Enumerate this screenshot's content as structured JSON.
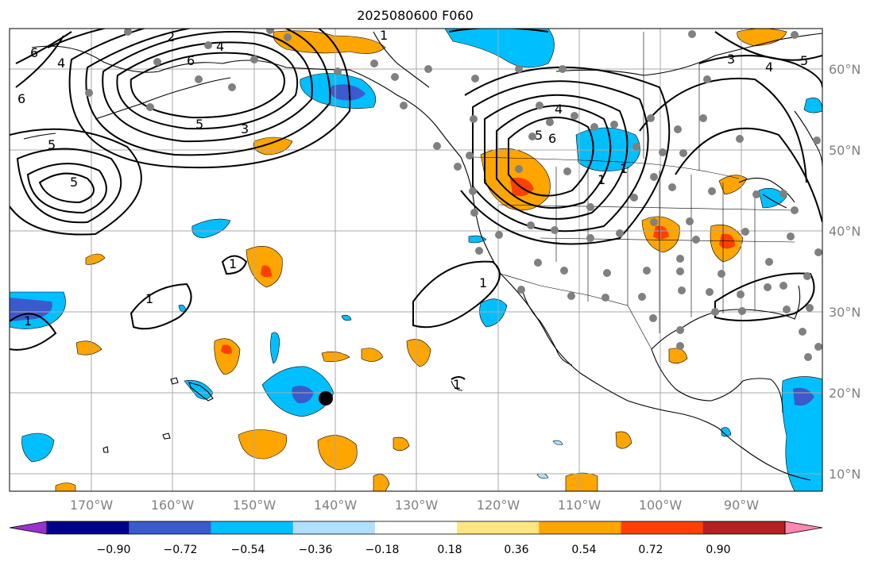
{
  "title": "2025080600 F060",
  "lon_labels": [
    "170°W",
    "160°W",
    "150°W",
    "140°W",
    "130°W",
    "120°W",
    "110°W",
    "100°W",
    "90°W"
  ],
  "lat_labels": [
    "60°N",
    "50°N",
    "40°N",
    "30°N",
    "20°N",
    "10°N"
  ],
  "colorbar": {
    "colors": [
      "#9932cc",
      "#00008b",
      "#3b5bcc",
      "#00bfff",
      "#b0e0ff",
      "#ffffff",
      "#ffe680",
      "#ffa500",
      "#ff4000",
      "#b22222",
      "#ff88b0"
    ],
    "tick_labels": [
      "−0.90",
      "−0.72",
      "−0.54",
      "−0.36",
      "−0.18",
      "0.18",
      "0.36",
      "0.54",
      "0.72",
      "0.90"
    ]
  },
  "contour_labels": [
    "6",
    "4",
    "2",
    "4",
    "6",
    "5",
    "3",
    "5",
    "6",
    "5",
    "1",
    "1",
    "1",
    "1",
    "1",
    "1",
    "4",
    "5",
    "6",
    "1",
    "1",
    "3",
    "4",
    "5"
  ],
  "colors": {
    "station": "#808080",
    "grid": "#a9a9a9",
    "marker": "#000000"
  }
}
